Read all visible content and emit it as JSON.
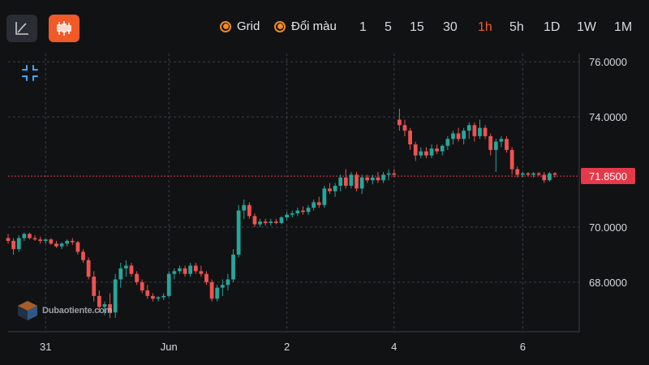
{
  "toolbar": {
    "line_chart_icon": "line-chart-icon",
    "candle_chart_icon": "candlestick-icon",
    "grid_label": "Grid",
    "color_label": "Đổi màu",
    "timeframes": [
      "1",
      "5",
      "15",
      "30",
      "1h",
      "5h",
      "1D",
      "1W",
      "1M"
    ],
    "active_timeframe": "1h"
  },
  "watermark": {
    "text": "Dubaotiente.com"
  },
  "colors": {
    "up": "#26a69a",
    "down": "#ef5350",
    "accent": "#f05a28",
    "price_tag": "#e5394a"
  },
  "chart_data": {
    "type": "candlestick",
    "grid": true,
    "current_price": "71.8500",
    "current_price_value": 71.85,
    "y_ticks": [
      {
        "value": 76,
        "label": "76.0000"
      },
      {
        "value": 74,
        "label": "74.0000"
      },
      {
        "value": 70,
        "label": "70.0000"
      },
      {
        "value": 68,
        "label": "68.0000"
      }
    ],
    "x_ticks": [
      {
        "index": 7,
        "label": "31"
      },
      {
        "index": 30,
        "label": "Jun"
      },
      {
        "index": 52,
        "label": "2"
      },
      {
        "index": 72,
        "label": "4"
      },
      {
        "index": 96,
        "label": "6"
      }
    ],
    "ylim": [
      66.2,
      76.3
    ],
    "candles": [
      [
        69.6,
        69.75,
        69.4,
        69.5
      ],
      [
        69.5,
        69.6,
        69.0,
        69.2
      ],
      [
        69.2,
        69.7,
        69.1,
        69.6
      ],
      [
        69.6,
        69.8,
        69.5,
        69.75
      ],
      [
        69.75,
        69.8,
        69.55,
        69.6
      ],
      [
        69.6,
        69.7,
        69.5,
        69.55
      ],
      [
        69.55,
        69.65,
        69.4,
        69.5
      ],
      [
        69.5,
        69.6,
        69.4,
        69.55
      ],
      [
        69.55,
        69.6,
        69.35,
        69.4
      ],
      [
        69.4,
        69.5,
        69.25,
        69.3
      ],
      [
        69.3,
        69.45,
        69.2,
        69.4
      ],
      [
        69.4,
        69.55,
        69.3,
        69.5
      ],
      [
        69.5,
        69.6,
        69.35,
        69.45
      ],
      [
        69.45,
        69.5,
        69.0,
        69.1
      ],
      [
        69.1,
        69.2,
        68.7,
        68.8
      ],
      [
        68.8,
        68.9,
        68.1,
        68.2
      ],
      [
        68.2,
        68.4,
        67.3,
        67.5
      ],
      [
        67.5,
        67.7,
        66.9,
        67.1
      ],
      [
        67.1,
        67.3,
        66.8,
        67.2
      ],
      [
        67.2,
        67.6,
        66.7,
        66.9
      ],
      [
        66.9,
        68.3,
        66.7,
        68.1
      ],
      [
        68.1,
        68.7,
        67.8,
        68.5
      ],
      [
        68.5,
        68.8,
        68.2,
        68.6
      ],
      [
        68.6,
        68.7,
        68.2,
        68.3
      ],
      [
        68.3,
        68.4,
        67.9,
        68.0
      ],
      [
        68.0,
        68.1,
        67.6,
        67.7
      ],
      [
        67.7,
        67.9,
        67.4,
        67.5
      ],
      [
        67.5,
        67.6,
        67.3,
        67.4
      ],
      [
        67.4,
        67.5,
        67.3,
        67.45
      ],
      [
        67.45,
        67.6,
        67.35,
        67.5
      ],
      [
        67.5,
        68.4,
        67.45,
        68.3
      ],
      [
        68.3,
        68.5,
        68.1,
        68.4
      ],
      [
        68.4,
        68.6,
        68.3,
        68.5
      ],
      [
        68.5,
        68.6,
        68.2,
        68.3
      ],
      [
        68.3,
        68.7,
        68.2,
        68.6
      ],
      [
        68.6,
        68.7,
        68.3,
        68.4
      ],
      [
        68.4,
        68.6,
        68.2,
        68.3
      ],
      [
        68.3,
        68.4,
        67.9,
        68.0
      ],
      [
        68.0,
        68.1,
        67.3,
        67.4
      ],
      [
        67.4,
        67.9,
        67.3,
        67.8
      ],
      [
        67.8,
        68.1,
        67.5,
        67.9
      ],
      [
        67.9,
        68.3,
        67.7,
        68.1
      ],
      [
        68.1,
        69.2,
        68.0,
        69.0
      ],
      [
        69.0,
        70.8,
        68.9,
        70.6
      ],
      [
        70.6,
        71.0,
        70.3,
        70.8
      ],
      [
        70.8,
        70.9,
        70.3,
        70.4
      ],
      [
        70.4,
        70.5,
        70.0,
        70.1
      ],
      [
        70.1,
        70.3,
        70.0,
        70.2
      ],
      [
        70.2,
        70.3,
        70.05,
        70.15
      ],
      [
        70.15,
        70.3,
        70.05,
        70.2
      ],
      [
        70.2,
        70.3,
        70.1,
        70.15
      ],
      [
        70.15,
        70.4,
        70.1,
        70.35
      ],
      [
        70.35,
        70.55,
        70.25,
        70.45
      ],
      [
        70.45,
        70.6,
        70.35,
        70.5
      ],
      [
        70.5,
        70.7,
        70.4,
        70.6
      ],
      [
        70.6,
        70.75,
        70.45,
        70.55
      ],
      [
        70.55,
        70.8,
        70.45,
        70.7
      ],
      [
        70.7,
        71.0,
        70.6,
        70.9
      ],
      [
        70.9,
        71.1,
        70.7,
        70.8
      ],
      [
        70.8,
        71.5,
        70.7,
        71.4
      ],
      [
        71.4,
        71.6,
        71.2,
        71.3
      ],
      [
        71.3,
        71.6,
        71.1,
        71.5
      ],
      [
        71.5,
        71.9,
        71.3,
        71.8
      ],
      [
        71.8,
        72.1,
        71.4,
        71.5
      ],
      [
        71.5,
        72.0,
        71.4,
        71.9
      ],
      [
        71.9,
        72.0,
        71.3,
        71.4
      ],
      [
        71.4,
        71.9,
        71.2,
        71.8
      ],
      [
        71.8,
        71.9,
        71.6,
        71.7
      ],
      [
        71.7,
        71.9,
        71.55,
        71.8
      ],
      [
        71.8,
        72.0,
        71.6,
        71.7
      ],
      [
        71.7,
        72.0,
        71.6,
        71.9
      ],
      [
        71.9,
        72.1,
        71.7,
        71.95
      ],
      [
        71.95,
        72.1,
        71.8,
        71.9
      ],
      [
        73.9,
        74.3,
        73.5,
        73.7
      ],
      [
        73.7,
        73.9,
        73.3,
        73.5
      ],
      [
        73.5,
        73.6,
        72.8,
        73.0
      ],
      [
        73.0,
        73.1,
        72.4,
        72.6
      ],
      [
        72.6,
        72.9,
        72.5,
        72.75
      ],
      [
        72.75,
        72.9,
        72.5,
        72.6
      ],
      [
        72.6,
        73.0,
        72.5,
        72.85
      ],
      [
        72.85,
        73.0,
        72.65,
        72.75
      ],
      [
        72.75,
        73.0,
        72.6,
        72.95
      ],
      [
        72.95,
        73.3,
        72.8,
        73.2
      ],
      [
        73.2,
        73.5,
        73.0,
        73.4
      ],
      [
        73.4,
        73.6,
        73.1,
        73.2
      ],
      [
        73.2,
        73.6,
        73.0,
        73.5
      ],
      [
        73.5,
        73.8,
        73.2,
        73.7
      ],
      [
        73.7,
        73.8,
        73.1,
        73.3
      ],
      [
        73.3,
        73.9,
        73.2,
        73.6
      ],
      [
        73.6,
        73.7,
        73.2,
        73.3
      ],
      [
        73.3,
        73.4,
        72.6,
        72.8
      ],
      [
        72.8,
        73.2,
        72.0,
        73.1
      ],
      [
        73.1,
        73.3,
        72.9,
        73.2
      ],
      [
        73.2,
        73.3,
        72.7,
        72.8
      ],
      [
        72.8,
        72.9,
        71.9,
        72.1
      ],
      [
        72.1,
        72.2,
        71.8,
        71.9
      ],
      [
        71.9,
        72.0,
        71.8,
        71.95
      ],
      [
        71.95,
        72.0,
        71.85,
        71.9
      ],
      [
        71.9,
        72.0,
        71.8,
        71.95
      ],
      [
        71.95,
        72.0,
        71.85,
        71.9
      ],
      [
        71.9,
        72.0,
        71.6,
        71.7
      ],
      [
        71.7,
        72.0,
        71.65,
        71.95
      ],
      [
        71.95,
        72.0,
        71.8,
        71.9
      ]
    ]
  }
}
